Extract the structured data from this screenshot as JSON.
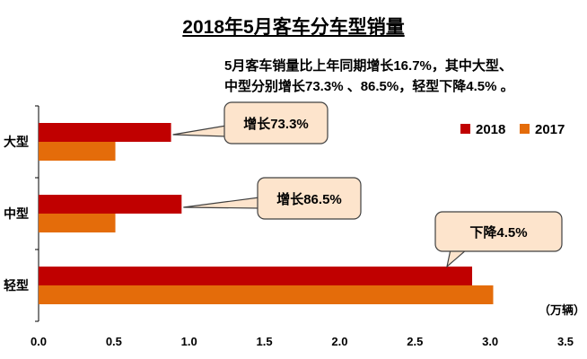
{
  "chart_data": {
    "type": "bar",
    "orientation": "horizontal",
    "title": "2018年5月客车分车型销量",
    "subtitle_lines": [
      "5月客车销量比上年同期增长16.7%，其中大型、",
      "中型分别增长73.3% 、86.5%，轻型下降4.5% 。"
    ],
    "categories": [
      "大型",
      "中型",
      "轻型"
    ],
    "series": [
      {
        "name": "2018",
        "color": "#C00000",
        "values": [
          0.88,
          0.95,
          2.88
        ]
      },
      {
        "name": "2017",
        "color": "#E46C0A",
        "values": [
          0.51,
          0.51,
          3.02
        ]
      }
    ],
    "xlim": [
      0,
      3.5
    ],
    "x_ticks": [
      "0.0",
      "0.5",
      "1.0",
      "1.5",
      "2.0",
      "2.5",
      "3.0",
      "3.5"
    ],
    "unit": "（万辆）",
    "legend_position": "top-right",
    "grid": false,
    "annotations": [
      "增长73.3%",
      "增长86.5%",
      "下降4.5%"
    ]
  }
}
